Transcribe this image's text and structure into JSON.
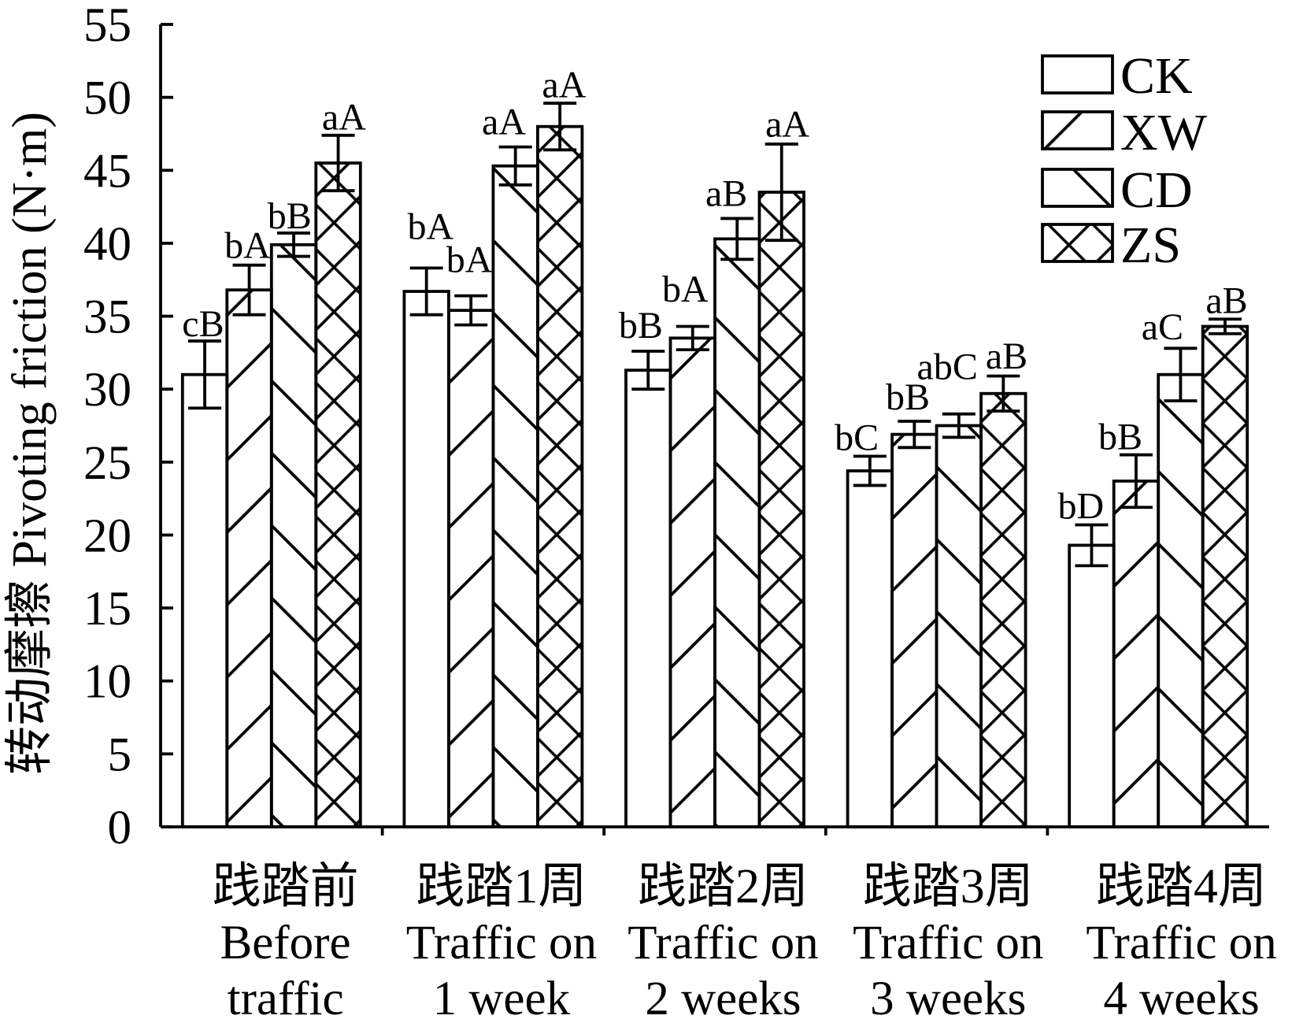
{
  "chart_data": {
    "type": "bar",
    "ylabel": "转动摩擦 Pivoting friction (N·m)",
    "xlabel": "",
    "ylim": [
      0,
      55
    ],
    "yticks": [
      0,
      5,
      10,
      15,
      20,
      25,
      30,
      35,
      40,
      45,
      50,
      55
    ],
    "categories": [
      [
        "践踏前",
        "Before",
        "traffic"
      ],
      [
        "践踏1周",
        "Traffic on",
        "1 week"
      ],
      [
        "践踏2周",
        "Traffic on",
        "2 weeks"
      ],
      [
        "践踏3周",
        "Traffic on",
        "3 weeks"
      ],
      [
        "践踏4周",
        "Traffic on",
        "4 weeks"
      ]
    ],
    "series": [
      {
        "name": "CK",
        "values": [
          31.0,
          36.7,
          31.3,
          24.4,
          19.3
        ],
        "errors": [
          2.3,
          1.6,
          1.3,
          1.0,
          1.4
        ],
        "significance": [
          "cB",
          "bA",
          "bB",
          "bC",
          "bD"
        ]
      },
      {
        "name": "XW",
        "values": [
          36.8,
          35.4,
          33.5,
          26.9,
          23.7
        ],
        "errors": [
          1.7,
          1.0,
          0.8,
          0.9,
          1.8
        ],
        "significance": [
          "bA",
          "bA",
          "bA",
          "bB",
          "bB"
        ]
      },
      {
        "name": "CD",
        "values": [
          39.9,
          45.3,
          40.3,
          27.5,
          31.0
        ],
        "errors": [
          0.8,
          1.3,
          1.4,
          0.8,
          1.8
        ],
        "significance": [
          "bB",
          "aA",
          "aB",
          "abC",
          "aC"
        ]
      },
      {
        "name": "ZS",
        "values": [
          45.5,
          48.0,
          43.5,
          29.7,
          34.3
        ],
        "errors": [
          1.9,
          1.6,
          3.3,
          1.2,
          0.5
        ],
        "significance": [
          "aA",
          "aA",
          "aA",
          "aB",
          "aB"
        ]
      }
    ],
    "legend_position": "top-right",
    "grid": false
  }
}
